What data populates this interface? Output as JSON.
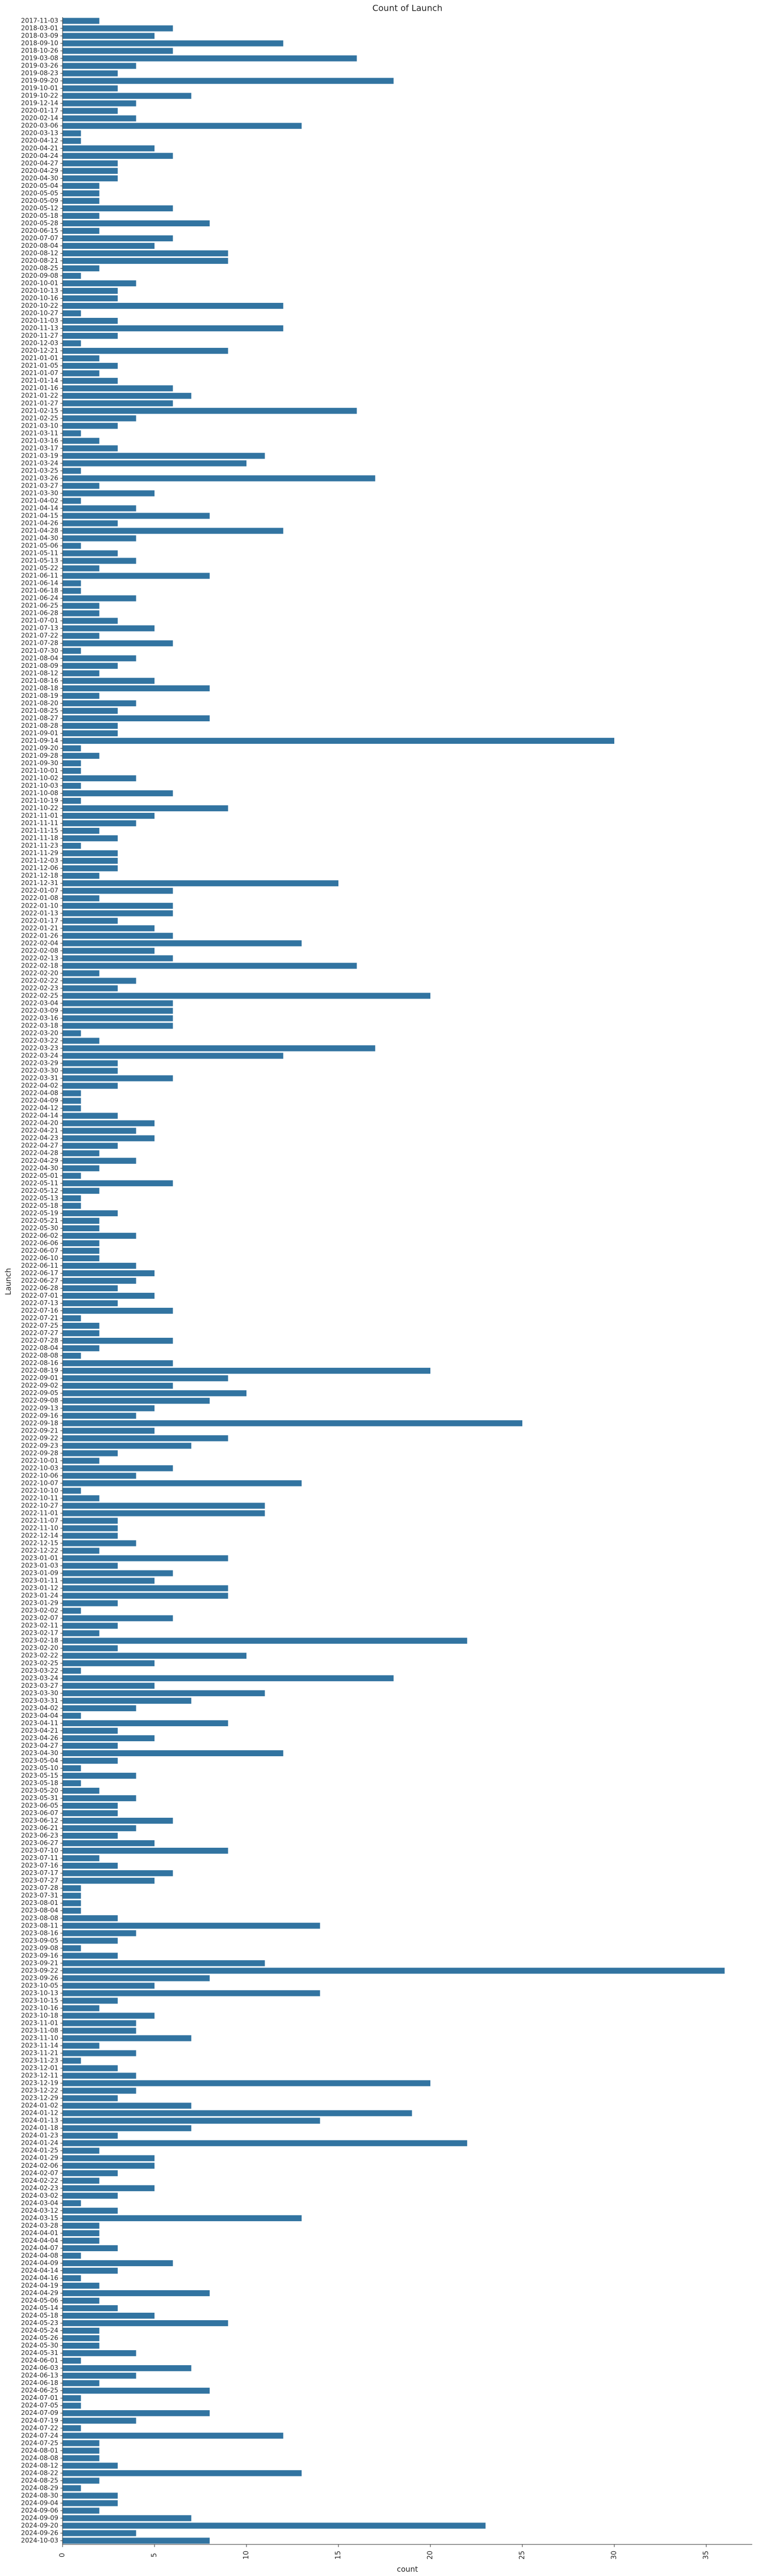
{
  "chart_data": {
    "type": "barh",
    "title": "Count of Launch",
    "xlabel": "count",
    "ylabel": "Launch",
    "color": "#3274a1",
    "xlim": [
      0,
      37.5
    ],
    "xticks": [
      0,
      5,
      10,
      15,
      20,
      25,
      30,
      35
    ],
    "categories": [
      "2017-11-03",
      "2018-03-01",
      "2018-03-09",
      "2018-09-10",
      "2018-10-26",
      "2019-03-08",
      "2019-03-26",
      "2019-08-23",
      "2019-09-20",
      "2019-10-01",
      "2019-10-22",
      "2019-12-14",
      "2020-01-17",
      "2020-02-14",
      "2020-03-06",
      "2020-03-13",
      "2020-04-12",
      "2020-04-21",
      "2020-04-24",
      "2020-04-27",
      "2020-04-29",
      "2020-04-30",
      "2020-05-04",
      "2020-05-05",
      "2020-05-09",
      "2020-05-12",
      "2020-05-18",
      "2020-05-28",
      "2020-06-15",
      "2020-07-07",
      "2020-08-04",
      "2020-08-12",
      "2020-08-21",
      "2020-08-25",
      "2020-09-08",
      "2020-10-01",
      "2020-10-13",
      "2020-10-16",
      "2020-10-22",
      "2020-10-27",
      "2020-11-03",
      "2020-11-13",
      "2020-11-27",
      "2020-12-03",
      "2020-12-21",
      "2021-01-01",
      "2021-01-05",
      "2021-01-07",
      "2021-01-14",
      "2021-01-16",
      "2021-01-22",
      "2021-01-27",
      "2021-02-15",
      "2021-02-25",
      "2021-03-10",
      "2021-03-11",
      "2021-03-16",
      "2021-03-17",
      "2021-03-19",
      "2021-03-24",
      "2021-03-25",
      "2021-03-26",
      "2021-03-27",
      "2021-03-30",
      "2021-04-02",
      "2021-04-14",
      "2021-04-15",
      "2021-04-26",
      "2021-04-28",
      "2021-04-30",
      "2021-05-06",
      "2021-05-11",
      "2021-05-13",
      "2021-05-22",
      "2021-06-11",
      "2021-06-14",
      "2021-06-18",
      "2021-06-24",
      "2021-06-25",
      "2021-06-28",
      "2021-07-01",
      "2021-07-13",
      "2021-07-22",
      "2021-07-28",
      "2021-07-30",
      "2021-08-04",
      "2021-08-09",
      "2021-08-12",
      "2021-08-16",
      "2021-08-18",
      "2021-08-19",
      "2021-08-20",
      "2021-08-25",
      "2021-08-27",
      "2021-08-28",
      "2021-09-01",
      "2021-09-14",
      "2021-09-20",
      "2021-09-28",
      "2021-09-30",
      "2021-10-01",
      "2021-10-02",
      "2021-10-03",
      "2021-10-08",
      "2021-10-19",
      "2021-10-22",
      "2021-11-01",
      "2021-11-11",
      "2021-11-15",
      "2021-11-18",
      "2021-11-23",
      "2021-11-29",
      "2021-12-03",
      "2021-12-06",
      "2021-12-18",
      "2021-12-31",
      "2022-01-07",
      "2022-01-08",
      "2022-01-10",
      "2022-01-13",
      "2022-01-17",
      "2022-01-21",
      "2022-01-26",
      "2022-02-04",
      "2022-02-08",
      "2022-02-13",
      "2022-02-18",
      "2022-02-20",
      "2022-02-22",
      "2022-02-23",
      "2022-02-25",
      "2022-03-04",
      "2022-03-09",
      "2022-03-16",
      "2022-03-18",
      "2022-03-20",
      "2022-03-22",
      "2022-03-23",
      "2022-03-24",
      "2022-03-29",
      "2022-03-30",
      "2022-03-31",
      "2022-04-02",
      "2022-04-08",
      "2022-04-09",
      "2022-04-12",
      "2022-04-14",
      "2022-04-20",
      "2022-04-21",
      "2022-04-23",
      "2022-04-27",
      "2022-04-28",
      "2022-04-29",
      "2022-04-30",
      "2022-05-01",
      "2022-05-11",
      "2022-05-12",
      "2022-05-13",
      "2022-05-18",
      "2022-05-19",
      "2022-05-21",
      "2022-05-30",
      "2022-06-02",
      "2022-06-06",
      "2022-06-07",
      "2022-06-10",
      "2022-06-11",
      "2022-06-17",
      "2022-06-27",
      "2022-06-28",
      "2022-07-01",
      "2022-07-13",
      "2022-07-16",
      "2022-07-21",
      "2022-07-25",
      "2022-07-27",
      "2022-07-28",
      "2022-08-04",
      "2022-08-08",
      "2022-08-16",
      "2022-08-19",
      "2022-09-01",
      "2022-09-02",
      "2022-09-05",
      "2022-09-08",
      "2022-09-13",
      "2022-09-16",
      "2022-09-18",
      "2022-09-21",
      "2022-09-22",
      "2022-09-23",
      "2022-09-28",
      "2022-10-01",
      "2022-10-03",
      "2022-10-06",
      "2022-10-07",
      "2022-10-10",
      "2022-10-11",
      "2022-10-27",
      "2022-11-01",
      "2022-11-07",
      "2022-11-10",
      "2022-12-14",
      "2022-12-15",
      "2022-12-22",
      "2023-01-01",
      "2023-01-03",
      "2023-01-09",
      "2023-01-11",
      "2023-01-12",
      "2023-01-24",
      "2023-01-29",
      "2023-02-02",
      "2023-02-07",
      "2023-02-11",
      "2023-02-17",
      "2023-02-18",
      "2023-02-20",
      "2023-02-22",
      "2023-02-25",
      "2023-03-22",
      "2023-03-24",
      "2023-03-27",
      "2023-03-30",
      "2023-03-31",
      "2023-04-02",
      "2023-04-04",
      "2023-04-11",
      "2023-04-21",
      "2023-04-26",
      "2023-04-27",
      "2023-04-30",
      "2023-05-04",
      "2023-05-10",
      "2023-05-15",
      "2023-05-18",
      "2023-05-20",
      "2023-05-31",
      "2023-06-05",
      "2023-06-07",
      "2023-06-12",
      "2023-06-21",
      "2023-06-23",
      "2023-06-27",
      "2023-07-10",
      "2023-07-11",
      "2023-07-16",
      "2023-07-17",
      "2023-07-27",
      "2023-07-28",
      "2023-07-31",
      "2023-08-01",
      "2023-08-04",
      "2023-08-08",
      "2023-08-11",
      "2023-08-16",
      "2023-09-05",
      "2023-09-08",
      "2023-09-16",
      "2023-09-21",
      "2023-09-22",
      "2023-09-26",
      "2023-10-05",
      "2023-10-13",
      "2023-10-15",
      "2023-10-16",
      "2023-10-18",
      "2023-11-01",
      "2023-11-08",
      "2023-11-10",
      "2023-11-14",
      "2023-11-21",
      "2023-11-23",
      "2023-12-01",
      "2023-12-11",
      "2023-12-19",
      "2023-12-22",
      "2023-12-29",
      "2024-01-02",
      "2024-01-12",
      "2024-01-13",
      "2024-01-18",
      "2024-01-23",
      "2024-01-24",
      "2024-01-25",
      "2024-01-29",
      "2024-02-06",
      "2024-02-07",
      "2024-02-22",
      "2024-02-23",
      "2024-03-02",
      "2024-03-04",
      "2024-03-12",
      "2024-03-15",
      "2024-03-28",
      "2024-04-01",
      "2024-04-04",
      "2024-04-07",
      "2024-04-08",
      "2024-04-09",
      "2024-04-14",
      "2024-04-16",
      "2024-04-19",
      "2024-04-29",
      "2024-05-06",
      "2024-05-14",
      "2024-05-18",
      "2024-05-23",
      "2024-05-24",
      "2024-05-26",
      "2024-05-30",
      "2024-05-31",
      "2024-06-01",
      "2024-06-03",
      "2024-06-13",
      "2024-06-18",
      "2024-06-25",
      "2024-07-01",
      "2024-07-05",
      "2024-07-09",
      "2024-07-19",
      "2024-07-22",
      "2024-07-24",
      "2024-07-25",
      "2024-08-01",
      "2024-08-08",
      "2024-08-12",
      "2024-08-22",
      "2024-08-25",
      "2024-08-29",
      "2024-08-30",
      "2024-09-04",
      "2024-09-06",
      "2024-09-09",
      "2024-09-20",
      "2024-09-26",
      "2024-10-03"
    ],
    "values": [
      2,
      6,
      5,
      12,
      6,
      16,
      4,
      3,
      18,
      3,
      7,
      4,
      3,
      4,
      13,
      1,
      1,
      5,
      6,
      3,
      3,
      3,
      2,
      2,
      2,
      6,
      2,
      8,
      2,
      6,
      5,
      9,
      9,
      2,
      1,
      4,
      3,
      3,
      12,
      1,
      3,
      12,
      3,
      1,
      9,
      2,
      3,
      2,
      3,
      6,
      7,
      6,
      16,
      4,
      3,
      1,
      2,
      3,
      11,
      10,
      1,
      17,
      2,
      5,
      1,
      4,
      8,
      3,
      12,
      4,
      1,
      3,
      4,
      2,
      8,
      1,
      1,
      4,
      2,
      2,
      3,
      5,
      2,
      6,
      1,
      4,
      3,
      2,
      5,
      8,
      2,
      4,
      3,
      8,
      3,
      3,
      30,
      1,
      2,
      1,
      1,
      4,
      1,
      6,
      1,
      9,
      5,
      4,
      2,
      3,
      1,
      3,
      3,
      3,
      2,
      15,
      6,
      2,
      6,
      6,
      3,
      5,
      6,
      13,
      5,
      6,
      16,
      2,
      4,
      3,
      20,
      6,
      6,
      6,
      6,
      1,
      2,
      17,
      12,
      3,
      3,
      6,
      3,
      1,
      1,
      1,
      3,
      5,
      4,
      5,
      3,
      2,
      4,
      2,
      1,
      6,
      2,
      1,
      1,
      3,
      2,
      2,
      4,
      2,
      2,
      2,
      4,
      5,
      4,
      3,
      5,
      3,
      6,
      1,
      2,
      2,
      6,
      2,
      1,
      6,
      20,
      9,
      6,
      10,
      8,
      5,
      4,
      25,
      5,
      9,
      7,
      3,
      2,
      6,
      4,
      13,
      1,
      2,
      11,
      11,
      3,
      3,
      3,
      4,
      2,
      9,
      3,
      6,
      5,
      9,
      9,
      3,
      1,
      6,
      3,
      2,
      22,
      3,
      10,
      5,
      1,
      18,
      5,
      11,
      7,
      4,
      1,
      9,
      3,
      5,
      3,
      12,
      3,
      1,
      4,
      1,
      2,
      4,
      3,
      3,
      6,
      4,
      3,
      5,
      9,
      2,
      3,
      6,
      5,
      1,
      1,
      1,
      1,
      3,
      14,
      4,
      3,
      1,
      3,
      11,
      36,
      8,
      5,
      14,
      3,
      2,
      5,
      4,
      4,
      7,
      2,
      4,
      1,
      3,
      4,
      20,
      4,
      3,
      7,
      19,
      14,
      7,
      3,
      22,
      2,
      5,
      5,
      3,
      2,
      5,
      3,
      1,
      3,
      13,
      2,
      2,
      2,
      3,
      1,
      6,
      3,
      1,
      2,
      8,
      2,
      3,
      5,
      9,
      2,
      2,
      2,
      4,
      1,
      7,
      4,
      2,
      8,
      1,
      1,
      8,
      4,
      1,
      12,
      2,
      2,
      2,
      3,
      13,
      2,
      1,
      3,
      3,
      2,
      7,
      23,
      4,
      8
    ]
  }
}
